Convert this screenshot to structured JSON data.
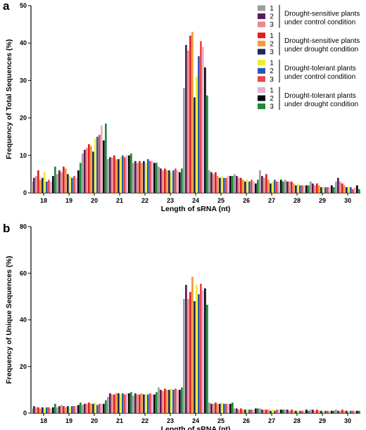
{
  "legend": {
    "groups": [
      {
        "lines": [
          "Drought-sensitive plants",
          "under control condition"
        ],
        "series": [
          "1",
          "2",
          "3"
        ]
      },
      {
        "lines": [
          "Drought-sensitive plants",
          "under drought condition"
        ],
        "series": [
          "1",
          "2",
          "3"
        ]
      },
      {
        "lines": [
          "Drought-tolerant plants",
          "under control condition"
        ],
        "series": [
          "1",
          "2",
          "3"
        ]
      },
      {
        "lines": [
          "Drought-tolerant plants",
          "under drought condition"
        ],
        "series": [
          "1",
          "2",
          "3"
        ]
      }
    ]
  },
  "colors": [
    "#9e9e9e",
    "#5b1a52",
    "#ea8a8a",
    "#e01e1e",
    "#f29a3e",
    "#1b2a5c",
    "#eded2a",
    "#2a56b0",
    "#e84848",
    "#e6aed2",
    "#0a0a0a",
    "#1f8a3c"
  ],
  "chart_data": [
    {
      "type": "bar",
      "panel": "a",
      "ylabel": "Frequency of Total Sequences (%)",
      "xlabel": "Length of sRNA (nt)",
      "ylim": [
        0,
        50
      ],
      "yticks": [
        "0",
        "10",
        "20",
        "30",
        "40",
        "50"
      ],
      "categories": [
        "18",
        "19",
        "20",
        "21",
        "22",
        "23",
        "24",
        "25",
        "26",
        "27",
        "28",
        "29",
        "30"
      ],
      "series": [
        {
          "name": "1",
          "values": [
            3.0,
            5.0,
            10.5,
            9.0,
            8.0,
            7.0,
            28.0,
            6.0,
            5.0,
            6.0,
            3.5,
            3.0,
            3.0
          ]
        },
        {
          "name": "2",
          "values": [
            4.0,
            6.0,
            11.5,
            9.5,
            8.5,
            6.5,
            39.5,
            5.5,
            4.5,
            4.5,
            3.0,
            2.5,
            4.0
          ]
        },
        {
          "name": "3",
          "values": [
            4.5,
            5.5,
            12.0,
            9.5,
            8.0,
            6.0,
            38.0,
            5.0,
            4.0,
            4.0,
            3.0,
            2.0,
            3.0
          ]
        },
        {
          "name": "1",
          "values": [
            6.0,
            7.0,
            13.0,
            10.0,
            8.5,
            6.5,
            42.0,
            5.5,
            4.0,
            5.0,
            3.0,
            2.5,
            2.5
          ]
        },
        {
          "name": "2",
          "values": [
            3.5,
            6.5,
            12.5,
            9.0,
            8.0,
            6.0,
            43.0,
            4.5,
            3.5,
            3.5,
            2.5,
            2.0,
            2.0
          ]
        },
        {
          "name": "3",
          "values": [
            4.0,
            5.0,
            11.0,
            9.0,
            8.5,
            6.0,
            25.5,
            4.0,
            3.0,
            2.5,
            2.0,
            1.5,
            1.5
          ]
        },
        {
          "name": "1",
          "values": [
            5.5,
            4.5,
            14.5,
            9.5,
            8.0,
            5.5,
            31.0,
            4.5,
            3.5,
            3.0,
            2.5,
            1.5,
            1.5
          ]
        },
        {
          "name": "2",
          "values": [
            3.0,
            4.0,
            15.0,
            10.0,
            9.0,
            6.0,
            36.5,
            4.0,
            3.0,
            3.5,
            2.0,
            1.5,
            1.5
          ]
        },
        {
          "name": "3",
          "values": [
            3.5,
            4.5,
            15.5,
            9.5,
            8.5,
            6.5,
            40.5,
            4.0,
            3.5,
            3.0,
            2.0,
            1.5,
            1.0
          ]
        },
        {
          "name": "1",
          "values": [
            3.0,
            4.0,
            18.0,
            10.0,
            8.5,
            6.0,
            39.0,
            4.5,
            3.0,
            3.0,
            2.0,
            1.5,
            1.5
          ]
        },
        {
          "name": "2",
          "values": [
            4.5,
            6.0,
            14.0,
            10.0,
            8.0,
            5.5,
            33.5,
            4.5,
            2.5,
            3.5,
            2.0,
            2.0,
            2.0
          ]
        },
        {
          "name": "3",
          "values": [
            7.0,
            8.0,
            18.5,
            10.5,
            8.0,
            6.5,
            26.0,
            4.5,
            3.5,
            3.0,
            2.0,
            1.5,
            1.0
          ]
        }
      ]
    },
    {
      "type": "bar",
      "panel": "b",
      "ylabel": "Frequency of Unique Sequences (%)",
      "xlabel": "Length of sRNA (nt)",
      "ylim": [
        0,
        80
      ],
      "yticks": [
        "0",
        "20",
        "40",
        "60",
        "80"
      ],
      "categories": [
        "18",
        "19",
        "20",
        "21",
        "22",
        "23",
        "24",
        "25",
        "26",
        "27",
        "28",
        "29",
        "30"
      ],
      "series": [
        {
          "name": "1",
          "values": [
            2.0,
            2.5,
            3.5,
            7.0,
            7.5,
            11.0,
            49.0,
            4.5,
            2.0,
            2.0,
            1.5,
            1.5,
            1.5
          ]
        },
        {
          "name": "2",
          "values": [
            3.0,
            3.0,
            4.0,
            8.5,
            8.5,
            10.0,
            55.0,
            4.0,
            2.0,
            1.5,
            1.5,
            1.5,
            1.0
          ]
        },
        {
          "name": "3",
          "values": [
            2.5,
            3.5,
            4.0,
            8.0,
            8.0,
            9.5,
            49.0,
            4.0,
            1.5,
            1.5,
            1.0,
            1.0,
            1.0
          ]
        },
        {
          "name": "1",
          "values": [
            2.5,
            3.0,
            4.5,
            8.0,
            8.0,
            10.5,
            52.0,
            4.5,
            2.0,
            1.5,
            1.5,
            1.5,
            1.5
          ]
        },
        {
          "name": "2",
          "values": [
            2.0,
            2.5,
            4.0,
            8.5,
            8.5,
            10.0,
            58.5,
            4.0,
            1.5,
            1.5,
            1.0,
            1.0,
            1.0
          ]
        },
        {
          "name": "3",
          "values": [
            2.5,
            3.0,
            4.0,
            8.5,
            8.0,
            10.0,
            48.0,
            4.0,
            1.5,
            1.0,
            1.0,
            1.0,
            1.0
          ]
        },
        {
          "name": "1",
          "values": [
            2.0,
            2.5,
            4.5,
            8.0,
            8.0,
            10.5,
            55.0,
            4.5,
            1.5,
            1.5,
            1.0,
            1.0,
            1.0
          ]
        },
        {
          "name": "2",
          "values": [
            2.5,
            3.0,
            3.5,
            8.5,
            8.0,
            10.0,
            51.0,
            4.0,
            1.5,
            1.0,
            1.0,
            1.0,
            1.0
          ]
        },
        {
          "name": "3",
          "values": [
            2.5,
            3.0,
            4.0,
            8.0,
            8.5,
            10.5,
            55.5,
            4.0,
            1.5,
            1.5,
            1.0,
            1.0,
            1.0
          ]
        },
        {
          "name": "1",
          "values": [
            2.0,
            3.0,
            4.0,
            8.5,
            8.0,
            10.0,
            52.5,
            4.0,
            1.5,
            1.5,
            1.0,
            1.0,
            1.0
          ]
        },
        {
          "name": "2",
          "values": [
            2.5,
            3.5,
            4.0,
            8.5,
            8.0,
            10.0,
            53.5,
            4.0,
            2.0,
            1.5,
            1.5,
            1.0,
            1.0
          ]
        },
        {
          "name": "3",
          "values": [
            4.0,
            4.5,
            5.5,
            9.0,
            9.0,
            11.0,
            46.5,
            4.5,
            2.0,
            1.5,
            1.0,
            1.0,
            1.0
          ]
        }
      ]
    }
  ]
}
